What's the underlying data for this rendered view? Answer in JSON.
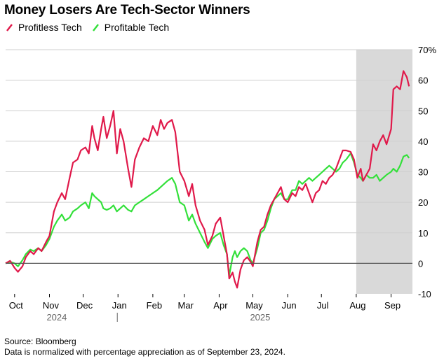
{
  "title": "Money Losers Are Tech-Sector Winners",
  "legend": [
    {
      "name": "Profitless Tech",
      "color": "#e0194a"
    },
    {
      "name": "Profitable Tech",
      "color": "#33e03a"
    }
  ],
  "footer": {
    "source": "Source: Bloomberg",
    "note": "Data is normalized with percentage appreciation as of September 23, 2024."
  },
  "chart_data": {
    "type": "line",
    "title": "Money Losers Are Tech-Sector Winners",
    "x_axis": {
      "range": [
        "2024-09-23",
        "2025-09-20"
      ],
      "ticks": [
        {
          "date": "2024-10-01",
          "label": "Oct"
        },
        {
          "date": "2024-11-01",
          "label": "Nov"
        },
        {
          "date": "2024-12-01",
          "label": "Dec"
        },
        {
          "date": "2025-01-01",
          "label": "Jan"
        },
        {
          "date": "2025-02-01",
          "label": "Feb"
        },
        {
          "date": "2025-03-01",
          "label": "Mar"
        },
        {
          "date": "2025-04-01",
          "label": "Apr"
        },
        {
          "date": "2025-05-01",
          "label": "May"
        },
        {
          "date": "2025-06-01",
          "label": "Jun"
        },
        {
          "date": "2025-07-01",
          "label": "Jul"
        },
        {
          "date": "2025-08-01",
          "label": "Aug"
        },
        {
          "date": "2025-09-01",
          "label": "Sep"
        }
      ],
      "year_labels": [
        {
          "date": "2024-11-15",
          "label": "2024"
        },
        {
          "date": "2025-05-15",
          "label": "2025"
        }
      ],
      "year_divider": "2025-01-01"
    },
    "y_axis": {
      "range": [
        -10,
        70
      ],
      "ticks": [
        -10,
        0,
        10,
        20,
        30,
        40,
        50,
        60,
        70
      ],
      "tick_labels": [
        "-10",
        "0",
        "10",
        "20",
        "30",
        "40",
        "50",
        "60",
        "70%"
      ],
      "position": "right",
      "grid": true
    },
    "shaded_region": {
      "start": "2025-08-01",
      "end": "2025-09-20",
      "color": "#d9d9d9"
    },
    "series": [
      {
        "name": "Profitless Tech",
        "color": "#e0194a",
        "points": [
          [
            "2024-09-23",
            0
          ],
          [
            "2024-09-27",
            0.8
          ],
          [
            "2024-10-01",
            -1.5
          ],
          [
            "2024-10-04",
            -2.8
          ],
          [
            "2024-10-08",
            -1
          ],
          [
            "2024-10-11",
            2
          ],
          [
            "2024-10-15",
            4
          ],
          [
            "2024-10-18",
            3
          ],
          [
            "2024-10-22",
            5
          ],
          [
            "2024-10-25",
            4
          ],
          [
            "2024-10-29",
            7
          ],
          [
            "2024-11-01",
            9
          ],
          [
            "2024-11-05",
            17
          ],
          [
            "2024-11-08",
            20
          ],
          [
            "2024-11-12",
            23
          ],
          [
            "2024-11-15",
            21
          ],
          [
            "2024-11-19",
            28
          ],
          [
            "2024-11-22",
            33
          ],
          [
            "2024-11-26",
            34
          ],
          [
            "2024-11-29",
            37
          ],
          [
            "2024-12-03",
            38
          ],
          [
            "2024-12-06",
            36
          ],
          [
            "2024-12-09",
            45
          ],
          [
            "2024-12-11",
            41
          ],
          [
            "2024-12-14",
            37
          ],
          [
            "2024-12-17",
            44
          ],
          [
            "2024-12-19",
            48
          ],
          [
            "2024-12-22",
            41
          ],
          [
            "2024-12-25",
            45
          ],
          [
            "2024-12-28",
            50
          ],
          [
            "2024-12-31",
            36
          ],
          [
            "2025-01-03",
            44
          ],
          [
            "2025-01-06",
            40
          ],
          [
            "2025-01-10",
            31
          ],
          [
            "2025-01-13",
            25
          ],
          [
            "2025-01-16",
            34
          ],
          [
            "2025-01-20",
            38
          ],
          [
            "2025-01-24",
            41
          ],
          [
            "2025-01-28",
            40
          ],
          [
            "2025-02-01",
            45
          ],
          [
            "2025-02-05",
            42
          ],
          [
            "2025-02-08",
            47
          ],
          [
            "2025-02-11",
            44
          ],
          [
            "2025-02-14",
            46
          ],
          [
            "2025-02-18",
            47
          ],
          [
            "2025-02-21",
            43
          ],
          [
            "2025-02-25",
            30
          ],
          [
            "2025-03-01",
            27
          ],
          [
            "2025-03-05",
            22
          ],
          [
            "2025-03-08",
            26
          ],
          [
            "2025-03-11",
            19
          ],
          [
            "2025-03-15",
            14
          ],
          [
            "2025-03-19",
            11
          ],
          [
            "2025-03-22",
            6
          ],
          [
            "2025-03-26",
            9
          ],
          [
            "2025-03-29",
            13
          ],
          [
            "2025-04-02",
            15
          ],
          [
            "2025-04-05",
            9
          ],
          [
            "2025-04-08",
            3
          ],
          [
            "2025-04-10",
            -5
          ],
          [
            "2025-04-13",
            -3
          ],
          [
            "2025-04-15",
            -6
          ],
          [
            "2025-04-17",
            -8
          ],
          [
            "2025-04-20",
            -2
          ],
          [
            "2025-04-23",
            1
          ],
          [
            "2025-04-26",
            2
          ],
          [
            "2025-04-29",
            0.5
          ],
          [
            "2025-05-01",
            -1
          ],
          [
            "2025-05-05",
            7
          ],
          [
            "2025-05-08",
            11
          ],
          [
            "2025-05-11",
            12
          ],
          [
            "2025-05-14",
            16
          ],
          [
            "2025-05-17",
            19
          ],
          [
            "2025-05-20",
            21
          ],
          [
            "2025-05-23",
            23
          ],
          [
            "2025-05-26",
            25
          ],
          [
            "2025-05-29",
            21
          ],
          [
            "2025-06-01",
            20
          ],
          [
            "2025-06-05",
            23
          ],
          [
            "2025-06-08",
            22
          ],
          [
            "2025-06-11",
            25
          ],
          [
            "2025-06-14",
            24
          ],
          [
            "2025-06-17",
            26
          ],
          [
            "2025-06-20",
            23
          ],
          [
            "2025-06-23",
            20
          ],
          [
            "2025-06-26",
            23
          ],
          [
            "2025-06-29",
            24
          ],
          [
            "2025-07-02",
            27
          ],
          [
            "2025-07-05",
            26
          ],
          [
            "2025-07-08",
            28
          ],
          [
            "2025-07-11",
            29
          ],
          [
            "2025-07-14",
            31
          ],
          [
            "2025-07-17",
            34
          ],
          [
            "2025-07-20",
            37
          ],
          [
            "2025-07-23",
            37
          ],
          [
            "2025-07-27",
            36.5
          ],
          [
            "2025-07-30",
            34
          ],
          [
            "2025-08-02",
            28
          ],
          [
            "2025-08-05",
            31
          ],
          [
            "2025-08-07",
            27
          ],
          [
            "2025-08-10",
            29
          ],
          [
            "2025-08-13",
            31
          ],
          [
            "2025-08-16",
            39
          ],
          [
            "2025-08-19",
            37
          ],
          [
            "2025-08-22",
            40
          ],
          [
            "2025-08-25",
            42
          ],
          [
            "2025-08-28",
            39
          ],
          [
            "2025-09-01",
            44
          ],
          [
            "2025-09-03",
            57
          ],
          [
            "2025-09-06",
            58
          ],
          [
            "2025-09-09",
            57
          ],
          [
            "2025-09-12",
            63
          ],
          [
            "2025-09-15",
            61
          ],
          [
            "2025-09-17",
            58
          ]
        ]
      },
      {
        "name": "Profitable Tech",
        "color": "#33e03a",
        "points": [
          [
            "2024-09-23",
            0
          ],
          [
            "2024-09-27",
            0.5
          ],
          [
            "2024-10-01",
            0
          ],
          [
            "2024-10-04",
            -1
          ],
          [
            "2024-10-08",
            1
          ],
          [
            "2024-10-11",
            3
          ],
          [
            "2024-10-15",
            4.5
          ],
          [
            "2024-10-18",
            4
          ],
          [
            "2024-10-22",
            5
          ],
          [
            "2024-10-25",
            4
          ],
          [
            "2024-10-29",
            6
          ],
          [
            "2024-11-01",
            8
          ],
          [
            "2024-11-05",
            12
          ],
          [
            "2024-11-08",
            14
          ],
          [
            "2024-11-12",
            16
          ],
          [
            "2024-11-15",
            14
          ],
          [
            "2024-11-19",
            15
          ],
          [
            "2024-11-22",
            17
          ],
          [
            "2024-11-26",
            18
          ],
          [
            "2024-11-29",
            19
          ],
          [
            "2024-12-03",
            20
          ],
          [
            "2024-12-06",
            18
          ],
          [
            "2024-12-09",
            23
          ],
          [
            "2024-12-11",
            22
          ],
          [
            "2024-12-14",
            21
          ],
          [
            "2024-12-17",
            20
          ],
          [
            "2024-12-19",
            18
          ],
          [
            "2024-12-22",
            17.5
          ],
          [
            "2024-12-25",
            18
          ],
          [
            "2024-12-28",
            19
          ],
          [
            "2024-12-31",
            17
          ],
          [
            "2025-01-03",
            18
          ],
          [
            "2025-01-06",
            19
          ],
          [
            "2025-01-10",
            17.5
          ],
          [
            "2025-01-13",
            17
          ],
          [
            "2025-01-16",
            19
          ],
          [
            "2025-01-20",
            20
          ],
          [
            "2025-01-24",
            21
          ],
          [
            "2025-01-28",
            22
          ],
          [
            "2025-02-01",
            23
          ],
          [
            "2025-02-05",
            24
          ],
          [
            "2025-02-08",
            25
          ],
          [
            "2025-02-11",
            26
          ],
          [
            "2025-02-14",
            27
          ],
          [
            "2025-02-18",
            28
          ],
          [
            "2025-02-21",
            26
          ],
          [
            "2025-02-25",
            20
          ],
          [
            "2025-03-01",
            19
          ],
          [
            "2025-03-05",
            14
          ],
          [
            "2025-03-08",
            16
          ],
          [
            "2025-03-11",
            13
          ],
          [
            "2025-03-15",
            10
          ],
          [
            "2025-03-19",
            7
          ],
          [
            "2025-03-22",
            5
          ],
          [
            "2025-03-26",
            8
          ],
          [
            "2025-03-29",
            9
          ],
          [
            "2025-04-02",
            10
          ],
          [
            "2025-04-05",
            6
          ],
          [
            "2025-04-08",
            3
          ],
          [
            "2025-04-10",
            -4
          ],
          [
            "2025-04-13",
            2
          ],
          [
            "2025-04-15",
            4
          ],
          [
            "2025-04-17",
            2
          ],
          [
            "2025-04-20",
            4
          ],
          [
            "2025-04-23",
            5
          ],
          [
            "2025-04-26",
            4
          ],
          [
            "2025-04-29",
            1
          ],
          [
            "2025-05-01",
            0
          ],
          [
            "2025-05-05",
            5
          ],
          [
            "2025-05-08",
            10
          ],
          [
            "2025-05-11",
            11
          ],
          [
            "2025-05-14",
            14
          ],
          [
            "2025-05-17",
            18
          ],
          [
            "2025-05-20",
            21
          ],
          [
            "2025-05-23",
            22
          ],
          [
            "2025-05-26",
            23
          ],
          [
            "2025-05-29",
            21
          ],
          [
            "2025-06-01",
            21
          ],
          [
            "2025-06-05",
            24
          ],
          [
            "2025-06-08",
            24
          ],
          [
            "2025-06-11",
            27
          ],
          [
            "2025-06-14",
            26
          ],
          [
            "2025-06-17",
            27
          ],
          [
            "2025-06-20",
            28
          ],
          [
            "2025-06-23",
            27
          ],
          [
            "2025-06-26",
            28
          ],
          [
            "2025-06-29",
            29
          ],
          [
            "2025-07-02",
            30
          ],
          [
            "2025-07-05",
            31
          ],
          [
            "2025-07-08",
            32
          ],
          [
            "2025-07-11",
            31
          ],
          [
            "2025-07-14",
            30
          ],
          [
            "2025-07-17",
            31
          ],
          [
            "2025-07-20",
            33
          ],
          [
            "2025-07-23",
            34
          ],
          [
            "2025-07-27",
            36
          ],
          [
            "2025-07-30",
            33
          ],
          [
            "2025-08-02",
            29
          ],
          [
            "2025-08-05",
            28
          ],
          [
            "2025-08-07",
            27
          ],
          [
            "2025-08-10",
            29
          ],
          [
            "2025-08-13",
            28
          ],
          [
            "2025-08-16",
            28
          ],
          [
            "2025-08-19",
            29
          ],
          [
            "2025-08-22",
            27
          ],
          [
            "2025-08-25",
            28
          ],
          [
            "2025-08-28",
            29
          ],
          [
            "2025-09-01",
            30
          ],
          [
            "2025-09-03",
            31
          ],
          [
            "2025-09-06",
            30
          ],
          [
            "2025-09-09",
            32
          ],
          [
            "2025-09-12",
            35
          ],
          [
            "2025-09-15",
            35.5
          ],
          [
            "2025-09-17",
            34.5
          ]
        ]
      }
    ]
  }
}
